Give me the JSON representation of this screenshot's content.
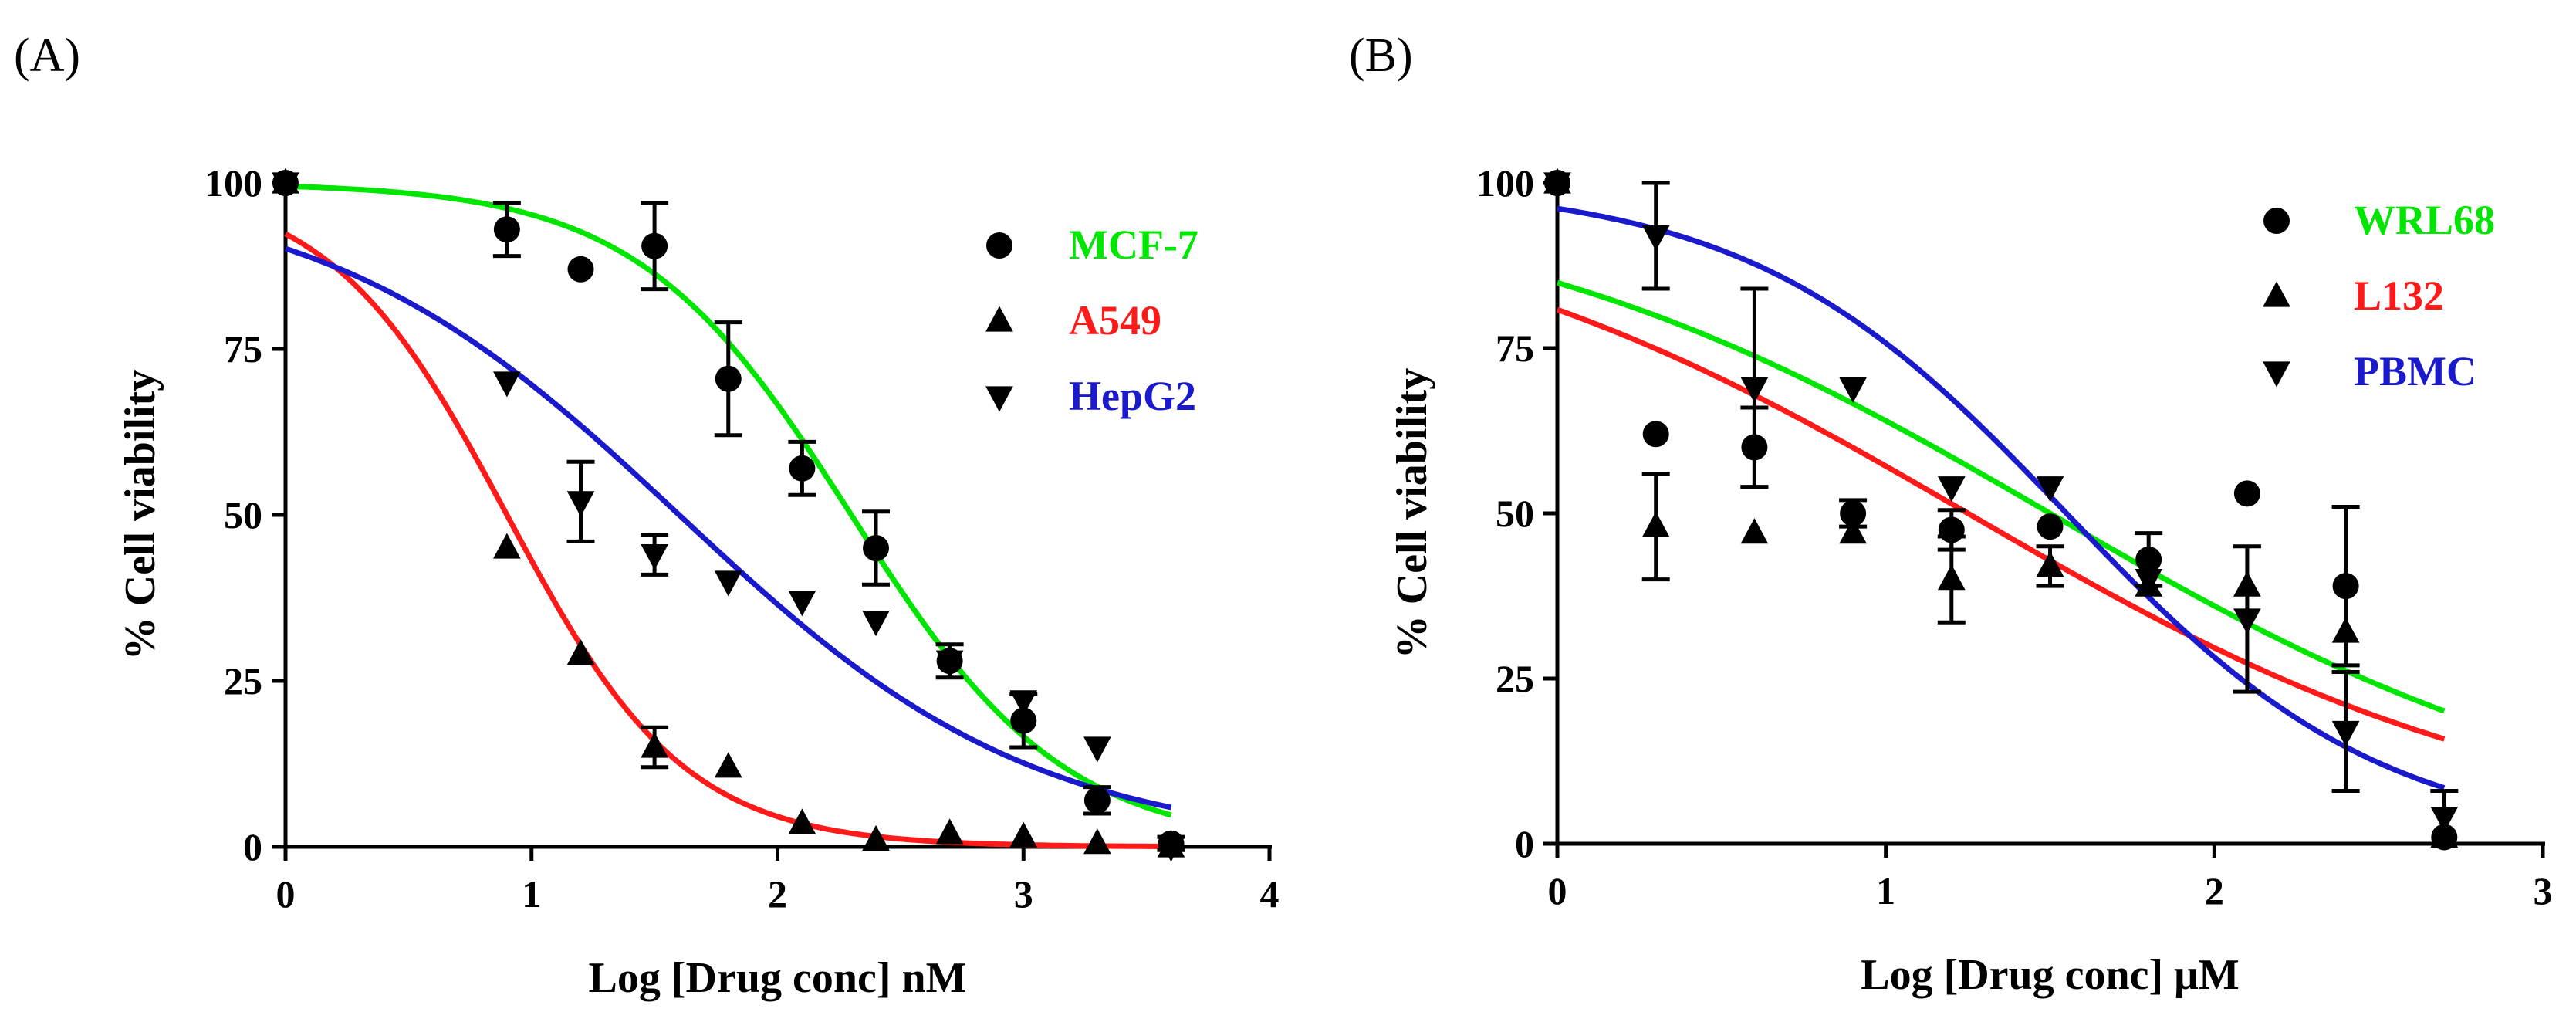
{
  "chart_data": [
    {
      "panel_label": "(A)",
      "type": "scatter",
      "xlabel": "Log [Drug conc] nM",
      "ylabel": "% Cell viability",
      "xlim": [
        0,
        4
      ],
      "ylim": [
        0,
        100
      ],
      "xticks": [
        0,
        1,
        2,
        3,
        4
      ],
      "yticks": [
        0,
        25,
        50,
        75,
        100
      ],
      "legend_position": "top-right",
      "series": [
        {
          "name": "MCF-7",
          "color": "#00e600",
          "marker": "circle",
          "x": [
            0,
            0.9,
            1.2,
            1.5,
            1.8,
            2.1,
            2.4,
            2.7,
            3.0,
            3.3,
            3.6
          ],
          "y": [
            100,
            93,
            87,
            90.5,
            70.5,
            57,
            45,
            28,
            19,
            7,
            0.5
          ],
          "err": [
            0,
            4,
            0,
            6.5,
            8.5,
            4,
            5.5,
            2.5,
            4,
            2,
            1
          ],
          "fit": {
            "top": 100,
            "bottom": 0,
            "logIC50": 2.3,
            "hill": 1.0
          }
        },
        {
          "name": "A549",
          "color": "#ff1a1a",
          "marker": "triangle-up",
          "x": [
            0,
            0.9,
            1.2,
            1.5,
            1.8,
            2.1,
            2.4,
            2.7,
            3.0,
            3.3,
            3.6
          ],
          "y": [
            100,
            45,
            29,
            15,
            12,
            3.5,
            1,
            2,
            1.5,
            0.5,
            0
          ],
          "err": [
            0,
            0,
            0,
            3,
            0,
            0,
            0,
            0,
            0,
            0,
            0
          ],
          "fit": {
            "top": 100,
            "bottom": 0,
            "logIC50": 0.9,
            "hill": 1.2
          }
        },
        {
          "name": "HepG2",
          "color": "#1a1acc",
          "marker": "triangle-down",
          "x": [
            0,
            0.9,
            1.2,
            1.5,
            1.8,
            2.1,
            2.4,
            2.7,
            3.0,
            3.3,
            3.6
          ],
          "y": [
            100,
            70,
            52,
            44,
            40,
            37,
            34,
            28,
            22,
            15,
            0
          ],
          "err": [
            0,
            0,
            6,
            3,
            0,
            0,
            0,
            0,
            0,
            0,
            0
          ],
          "fit": {
            "top": 100,
            "bottom": 0,
            "logIC50": 1.6,
            "hill": 0.6
          }
        }
      ]
    },
    {
      "panel_label": "(B)",
      "type": "scatter",
      "xlabel": "Log [Drug conc] μM",
      "ylabel": "% Cell viability",
      "xlim": [
        0,
        3
      ],
      "ylim": [
        0,
        100
      ],
      "xticks": [
        0,
        1,
        2,
        3
      ],
      "yticks": [
        0,
        25,
        50,
        75,
        100
      ],
      "legend_position": "top-right",
      "series": [
        {
          "name": "WRL68",
          "color": "#00e600",
          "marker": "circle",
          "x": [
            0,
            0.3,
            0.6,
            0.9,
            1.2,
            1.5,
            1.8,
            2.1,
            2.4,
            2.7
          ],
          "y": [
            100,
            62,
            60,
            50,
            47.5,
            48,
            43,
            53,
            39,
            1
          ],
          "err": [
            0,
            0,
            6,
            2,
            3,
            0,
            4,
            0,
            12,
            0
          ],
          "fit": {
            "top": 100,
            "bottom": 0,
            "logIC50": 1.5,
            "hill": 0.5
          }
        },
        {
          "name": "L132",
          "color": "#ff1a1a",
          "marker": "triangle-up",
          "x": [
            0,
            0.3,
            0.6,
            0.9,
            1.2,
            1.5,
            1.8,
            2.1,
            2.4,
            2.7
          ],
          "y": [
            100,
            48,
            47,
            47,
            40,
            42,
            39,
            39,
            32,
            1
          ],
          "err": [
            0,
            8,
            0,
            0,
            6.5,
            3,
            0,
            0,
            0,
            0
          ],
          "fit": {
            "top": 100,
            "bottom": 0,
            "logIC50": 1.25,
            "hill": 0.5
          }
        },
        {
          "name": "PBMC",
          "color": "#1a1acc",
          "marker": "triangle-down",
          "x": [
            0,
            0.3,
            0.6,
            0.9,
            1.2,
            1.5,
            1.8,
            2.1,
            2.4,
            2.7
          ],
          "y": [
            100,
            92,
            69,
            69,
            54,
            54,
            40,
            34,
            17,
            4
          ],
          "err": [
            0,
            8,
            15,
            0,
            0,
            0,
            0,
            11,
            9,
            4
          ],
          "fit": {
            "top": 100,
            "bottom": 0,
            "logIC50": 1.55,
            "hill": 0.9
          }
        }
      ]
    }
  ]
}
